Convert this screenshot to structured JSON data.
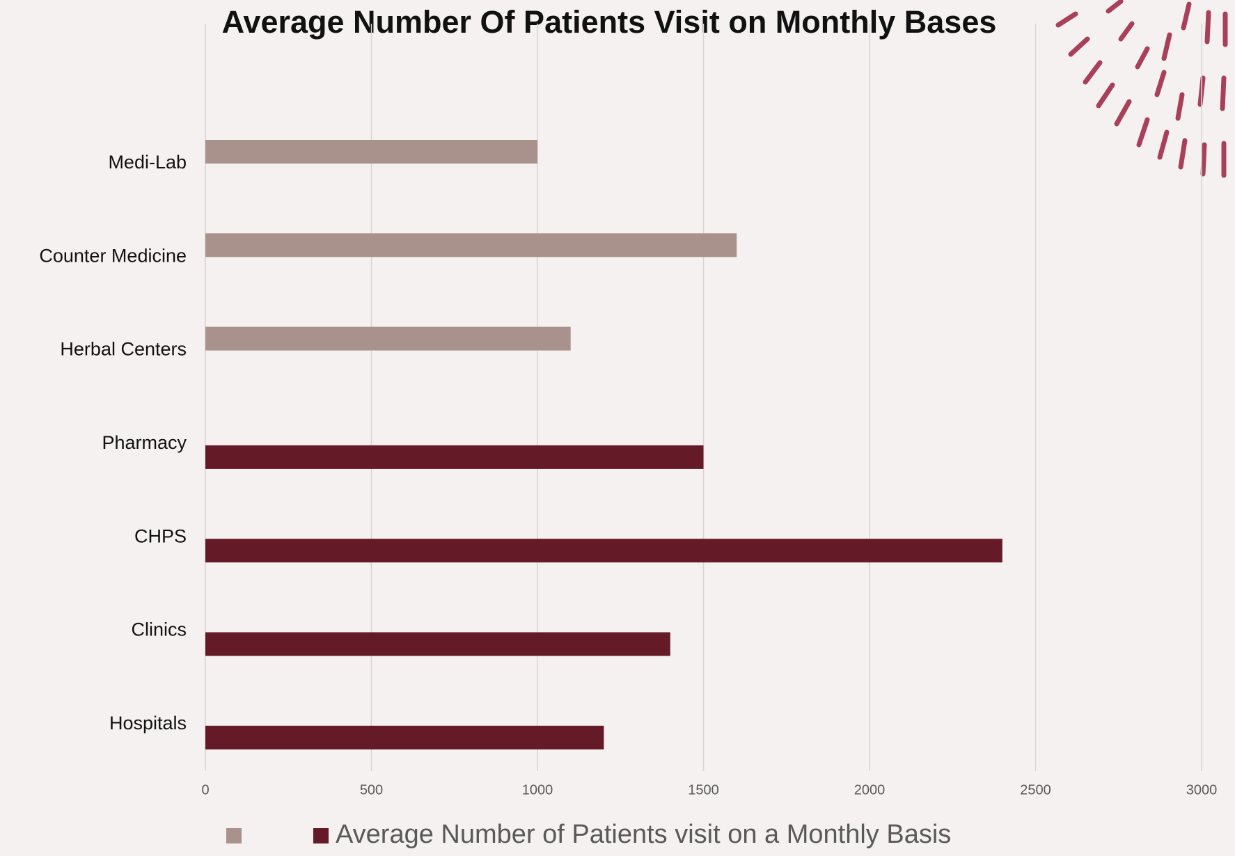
{
  "chart_data": {
    "type": "bar",
    "orientation": "horizontal",
    "title": "Average Number Of Patients Visit on Monthly Bases",
    "categories": [
      "Medi-Lab",
      "Counter Medicine",
      "Herbal Centers",
      "Pharmacy",
      "CHPS",
      "Clinics",
      "Hospitals"
    ],
    "series": [
      {
        "color": "#a8928b",
        "values": [
          1000,
          1600,
          1100,
          null,
          null,
          null,
          null
        ]
      },
      {
        "name": "Average Number of Patients visit on a Monthly Basis",
        "color": "#641a27",
        "values": [
          null,
          null,
          null,
          1500,
          2400,
          1400,
          1200
        ]
      }
    ],
    "xlim": [
      0,
      3000
    ],
    "xticks": [
      0,
      500,
      1000,
      1500,
      2000,
      2500,
      3000
    ],
    "grid": true,
    "legend": "bottom"
  }
}
